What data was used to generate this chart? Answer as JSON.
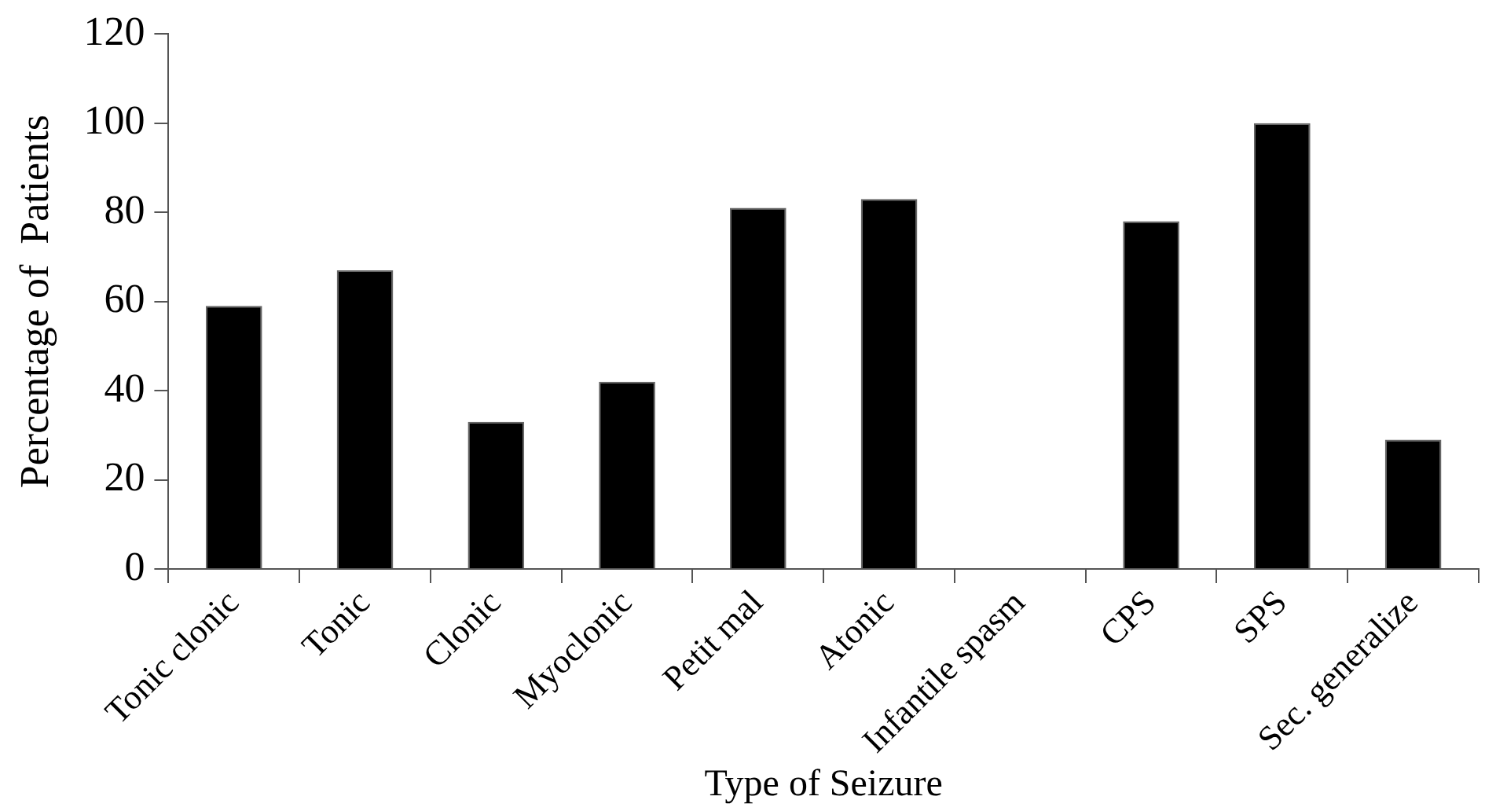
{
  "chart_data": {
    "type": "bar",
    "xlabel": "Type of Seizure",
    "ylabel": "Percentage of  Patients",
    "categories": [
      "Tonic clonic",
      "Tonic",
      "Clonic",
      "Myoclonic",
      "Petit mal",
      "Atonic",
      "Infantile spasm",
      "CPS",
      "SPS",
      "Sec. generalize"
    ],
    "values": [
      59,
      67,
      33,
      42,
      81,
      83,
      0,
      78,
      100,
      29
    ],
    "color": "#000000",
    "ylim": [
      0,
      120
    ],
    "yticks": [
      0,
      20,
      40,
      60,
      80,
      100,
      120
    ],
    "grid": false,
    "legend": false
  }
}
